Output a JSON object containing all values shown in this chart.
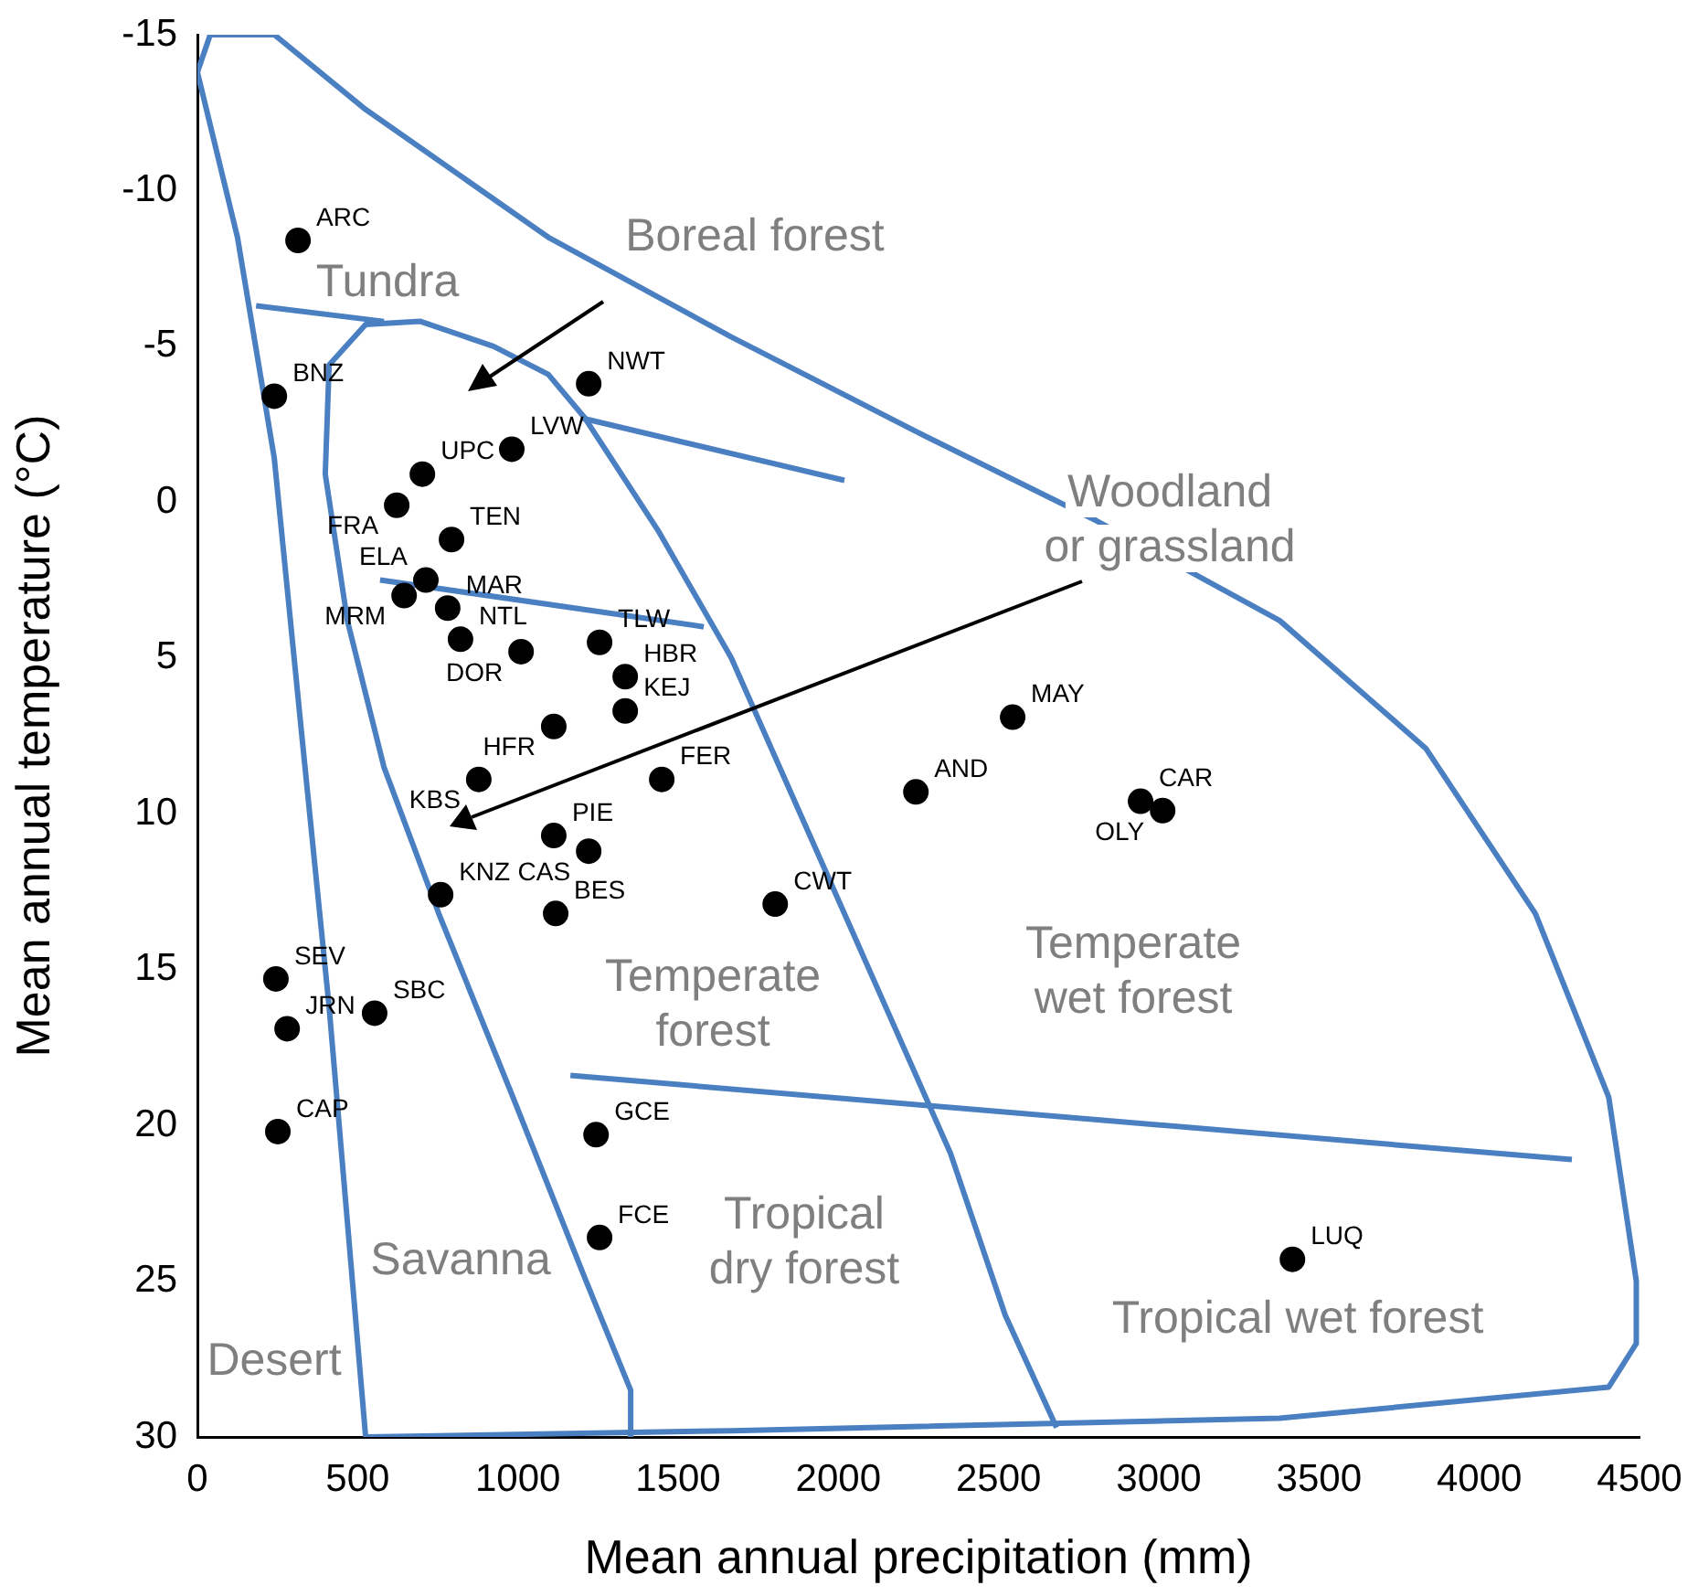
{
  "chart_data": {
    "type": "scatter",
    "xlabel": "Mean annual precipitation (mm)",
    "ylabel": "Mean annual temperature (°C)",
    "xlim": [
      0,
      4500
    ],
    "xticks": [
      0,
      500,
      1000,
      1500,
      2000,
      2500,
      3000,
      3500,
      4000,
      4500
    ],
    "ylim": [
      30,
      -15
    ],
    "yticks": [
      -15,
      -10,
      -5,
      0,
      5,
      10,
      15,
      20,
      25,
      30
    ],
    "grid": false,
    "series": [
      {
        "type": "scatter",
        "color": "#000000",
        "marker": "circle",
        "x": [
          314,
          1221,
          240,
          702,
          981,
          622,
          793,
          713,
          781,
          645,
          821,
          1010,
          1255,
          1335,
          1335,
          1112,
          2544,
          1449,
          878,
          2242,
          2943,
          3012,
          1112,
          1221,
          1803,
          759,
          1118,
          245,
          553,
          280,
          251,
          1244,
          1255,
          3417
        ],
        "values": [
          -8.4,
          -3.8,
          -3.4,
          -0.9,
          -1.7,
          0.1,
          1.2,
          2.5,
          3.4,
          3.0,
          4.4,
          4.8,
          4.5,
          5.6,
          6.7,
          7.2,
          6.9,
          8.9,
          8.9,
          9.3,
          9.6,
          9.9,
          10.7,
          11.2,
          12.9,
          12.6,
          13.2,
          15.3,
          16.4,
          16.9,
          20.2,
          20.3,
          23.6,
          24.3
        ],
        "value_labels": [
          "ARC",
          "NWT",
          "BNZ",
          "UPC",
          "LVW",
          "FRA",
          "TEN",
          "ELA",
          "MAR",
          "MRM",
          "NTL",
          "DOR",
          "TLW",
          "HBR",
          "KEJ",
          "HFR",
          "MAY",
          "FER",
          "KBS",
          "AND",
          "CAR",
          "OLY",
          "PIE",
          "CAS",
          "CWT",
          "KNZ",
          "BES",
          "SEV",
          "SBC",
          "JRN",
          "CAP",
          "GCE",
          "FCE",
          "LUQ"
        ]
      },
      {
        "type": "line",
        "color": "#4a7fc1",
        "x": [
          0,
          40,
          240,
          525,
          1095,
          1666,
          2236,
          2806,
          3377,
          3833,
          4175,
          4404,
          4490,
          4490,
          4404,
          3377,
          1666,
          525
        ],
        "values": [
          -13.8,
          -15,
          -15,
          -12.6,
          -8.5,
          -5.3,
          -2.3,
          0.6,
          3.8,
          7.9,
          13.2,
          19.1,
          25,
          27,
          28.4,
          29.4,
          29.8,
          30
        ]
      },
      {
        "type": "line",
        "color": "#4a7fc1",
        "x": [
          0,
          125,
          240,
          325,
          411,
          525
        ],
        "values": [
          -13.8,
          -8.5,
          -1.4,
          7.4,
          16.2,
          30
        ]
      },
      {
        "type": "line",
        "color": "#4a7fc1",
        "x": [
          183,
          582
        ],
        "values": [
          -6.3,
          -5.8
        ]
      },
      {
        "type": "line",
        "color": "#4a7fc1",
        "x": [
          1352,
          1352,
          1209,
          981,
          753,
          582,
          468,
          399,
          411,
          525,
          696,
          924,
          1095,
          1209,
          1437,
          1666,
          1894,
          2122,
          2350,
          2521,
          2681
        ],
        "values": [
          30,
          28.5,
          24.9,
          19.0,
          13.2,
          8.5,
          3.8,
          -0.9,
          -4.4,
          -5.7,
          -5.8,
          -5.0,
          -4.1,
          -2.7,
          0.9,
          5.0,
          10.3,
          15.6,
          20.9,
          26.1,
          29.7
        ]
      },
      {
        "type": "line",
        "color": "#4a7fc1",
        "x": [
          1198,
          2019
        ],
        "values": [
          -2.7,
          -0.7
        ]
      },
      {
        "type": "line",
        "color": "#4a7fc1",
        "x": [
          570,
          1580
        ],
        "values": [
          2.5,
          4.0
        ]
      },
      {
        "type": "line",
        "color": "#4a7fc1",
        "x": [
          1164,
          4289
        ],
        "values": [
          18.4,
          21.1
        ]
      }
    ],
    "annotations": [
      "Tundra",
      "Boreal forest",
      "Woodland\nor grassland",
      "Temperate\nforest",
      "Temperate\nwet forest",
      "Tropical\ndry forest",
      "Tropical wet forest",
      "Savanna",
      "Desert"
    ]
  }
}
